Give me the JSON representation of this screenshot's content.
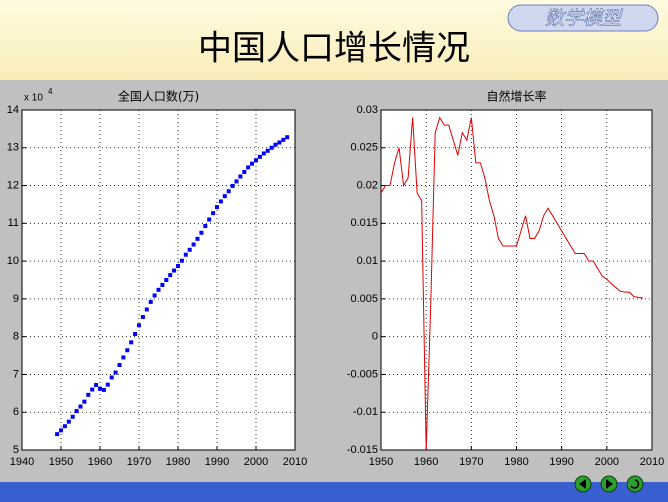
{
  "header": {
    "badge": "数学模型",
    "title": "中国人口增长情况"
  },
  "chart_data": [
    {
      "type": "line",
      "title": "全国人口数(万)",
      "y_multiplier": {
        "base": "x 10",
        "exponent": "4"
      },
      "x": [
        1949,
        1950,
        1951,
        1952,
        1953,
        1954,
        1955,
        1956,
        1957,
        1958,
        1959,
        1960,
        1961,
        1962,
        1963,
        1964,
        1965,
        1966,
        1967,
        1968,
        1969,
        1970,
        1971,
        1972,
        1973,
        1974,
        1975,
        1976,
        1977,
        1978,
        1979,
        1980,
        1981,
        1982,
        1983,
        1984,
        1985,
        1986,
        1987,
        1988,
        1989,
        1990,
        1991,
        1992,
        1993,
        1994,
        1995,
        1996,
        1997,
        1998,
        1999,
        2000,
        2001,
        2002,
        2003,
        2004,
        2005,
        2006,
        2007,
        2008
      ],
      "series": [
        {
          "color": "#0000ff",
          "marker": "square",
          "values": [
            5.42,
            5.52,
            5.63,
            5.75,
            5.88,
            6.03,
            6.15,
            6.28,
            6.46,
            6.6,
            6.72,
            6.62,
            6.59,
            6.73,
            6.92,
            7.05,
            7.25,
            7.45,
            7.64,
            7.85,
            8.07,
            8.3,
            8.52,
            8.72,
            8.92,
            9.09,
            9.24,
            9.37,
            9.5,
            9.63,
            9.75,
            9.87,
            10.01,
            10.17,
            10.3,
            10.44,
            10.59,
            10.75,
            10.93,
            11.1,
            11.27,
            11.43,
            11.58,
            11.72,
            11.85,
            11.99,
            12.11,
            12.24,
            12.36,
            12.48,
            12.58,
            12.67,
            12.76,
            12.85,
            12.92,
            13.0,
            13.08,
            13.14,
            13.21,
            13.28
          ]
        }
      ],
      "xlim": [
        1940,
        2010
      ],
      "xticks": [
        1940,
        1950,
        1960,
        1970,
        1980,
        1990,
        2000,
        2010
      ],
      "ylim": [
        5,
        14
      ],
      "yticks": [
        5,
        6,
        7,
        8,
        9,
        10,
        11,
        12,
        13,
        14
      ],
      "grid": true
    },
    {
      "type": "line",
      "title": "自然增长率",
      "x": [
        1950,
        1951,
        1952,
        1953,
        1954,
        1955,
        1956,
        1957,
        1958,
        1959,
        1960,
        1961,
        1962,
        1963,
        1964,
        1965,
        1966,
        1967,
        1968,
        1969,
        1970,
        1971,
        1972,
        1973,
        1974,
        1975,
        1976,
        1977,
        1978,
        1979,
        1980,
        1981,
        1982,
        1983,
        1984,
        1985,
        1986,
        1987,
        1988,
        1989,
        1990,
        1991,
        1992,
        1993,
        1994,
        1995,
        1996,
        1997,
        1998,
        1999,
        2000,
        2001,
        2002,
        2003,
        2004,
        2005,
        2006,
        2007,
        2008
      ],
      "series": [
        {
          "color": "#e00000",
          "values": [
            0.019,
            0.02,
            0.02,
            0.023,
            0.025,
            0.02,
            0.021,
            0.029,
            0.019,
            0.018,
            -0.015,
            0.004,
            0.027,
            0.029,
            0.028,
            0.028,
            0.026,
            0.024,
            0.027,
            0.026,
            0.029,
            0.023,
            0.023,
            0.021,
            0.018,
            0.016,
            0.013,
            0.012,
            0.012,
            0.012,
            0.012,
            0.014,
            0.016,
            0.013,
            0.013,
            0.014,
            0.016,
            0.017,
            0.016,
            0.015,
            0.014,
            0.013,
            0.012,
            0.011,
            0.011,
            0.011,
            0.01,
            0.01,
            0.009,
            0.008,
            0.0076,
            0.007,
            0.0065,
            0.006,
            0.0059,
            0.0059,
            0.0053,
            0.0052,
            0.0051
          ]
        }
      ],
      "xlim": [
        1950,
        2010
      ],
      "xticks": [
        1950,
        1960,
        1970,
        1980,
        1990,
        2000,
        2010
      ],
      "ylim": [
        -0.015,
        0.03
      ],
      "yticks": [
        -0.015,
        -0.01,
        -0.005,
        0,
        0.005,
        0.01,
        0.015,
        0.02,
        0.025,
        0.03
      ],
      "grid": true
    }
  ]
}
